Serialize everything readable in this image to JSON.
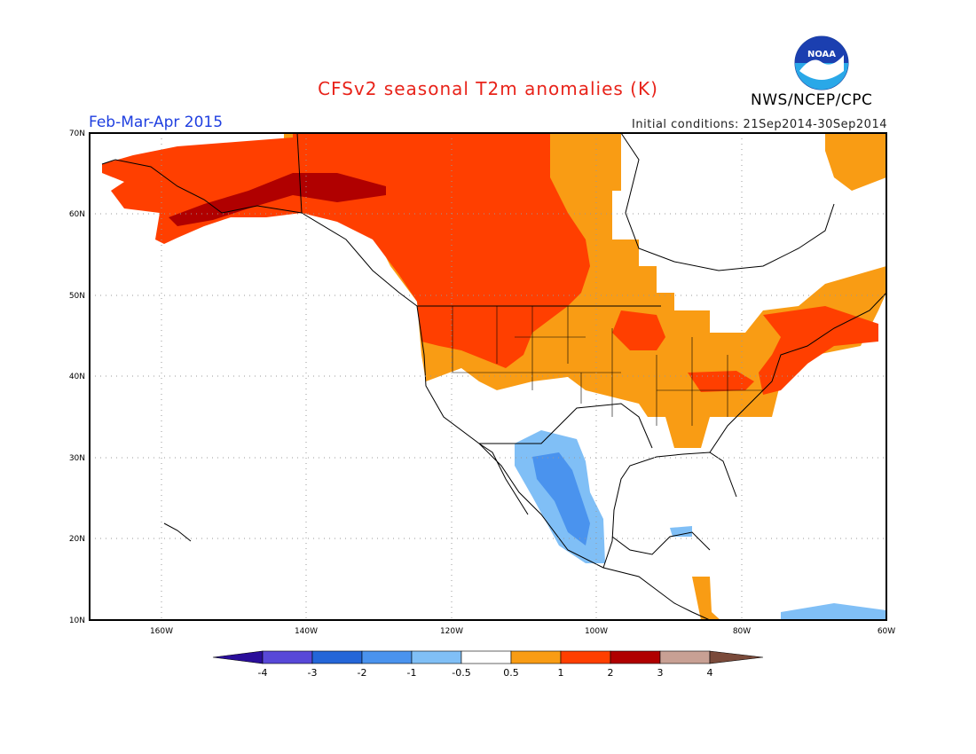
{
  "header": {
    "title": "CFSv2 seasonal T2m anomalies (K)",
    "period": "Feb-Mar-Apr 2015",
    "initial_conditions": "Initial conditions: 21Sep2014-30Sep2014",
    "agency": "NWS/NCEP/CPC",
    "logo_text": "NOAA",
    "logo_icon": "noaa-logo-icon"
  },
  "map": {
    "projection": "cylindrical-equidistant",
    "lon_range": [
      -170,
      -60
    ],
    "lat_range": [
      10,
      70
    ],
    "lat_labels": [
      "70N",
      "60N",
      "50N",
      "40N",
      "30N",
      "20N",
      "10N"
    ],
    "lon_labels": [
      "160W",
      "140W",
      "120W",
      "100W",
      "80W",
      "60W"
    ],
    "gridlines": "dotted"
  },
  "colorbar": {
    "tick_labels": [
      "-4",
      "-3",
      "-2",
      "-1",
      "-0.5",
      "0.5",
      "1",
      "2",
      "3",
      "4"
    ],
    "colors": [
      "#2a0e9a",
      "#5848d8",
      "#2466d8",
      "#4a93ee",
      "#80bff6",
      "#ffffff",
      "#f99c14",
      "#ff3f00",
      "#b00000",
      "#c8a094",
      "#7a4a3a"
    ]
  },
  "anomaly_colors": {
    "warm_0_5_1": "#f99c14",
    "warm_1_2": "#ff3f00",
    "warm_2_3": "#b00000",
    "cool_neg1_neg0_5": "#80bff6",
    "cool_neg2_neg1": "#4a93ee"
  }
}
